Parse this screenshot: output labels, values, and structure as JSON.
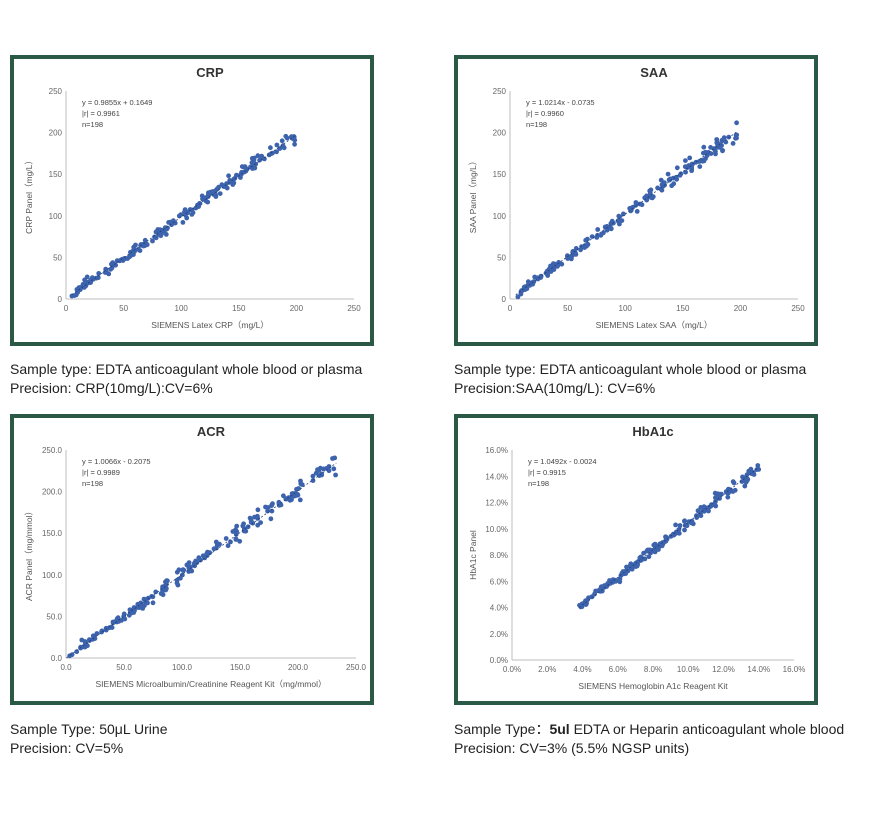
{
  "chart_data": [
    {
      "type": "scatter",
      "title": "CRP",
      "xlabel": "SIEMENS Latex CRP（mg/L）",
      "ylabel": "CRP Panel（mg/L）",
      "xlim": [
        0,
        250
      ],
      "ylim": [
        0,
        250
      ],
      "xticks": [
        "0",
        "50",
        "100",
        "150",
        "200",
        "250"
      ],
      "yticks": [
        "0",
        "50",
        "100",
        "150",
        "200",
        "250"
      ],
      "annotation": [
        "y = 0.9855x + 0.1649",
        "|r| = 0.9961",
        "n=198"
      ],
      "regression": {
        "slope": 0.9855,
        "intercept": 0.1649
      },
      "data_range": [
        5,
        200
      ],
      "n": 198,
      "point_color": "#3d63ad",
      "grid": false
    },
    {
      "type": "scatter",
      "title": "SAA",
      "xlabel": "SIEMENS Latex SAA（mg/L）",
      "ylabel": "SAA Panel（mg/L）",
      "xlim": [
        0,
        250
      ],
      "ylim": [
        0,
        250
      ],
      "xticks": [
        "0",
        "50",
        "100",
        "150",
        "200",
        "250"
      ],
      "yticks": [
        "0",
        "50",
        "100",
        "150",
        "200",
        "250"
      ],
      "annotation": [
        "y = 1.0214x - 0.0735",
        "|r| = 0.9960",
        "n=198"
      ],
      "regression": {
        "slope": 1.0214,
        "intercept": -0.0735
      },
      "data_range": [
        5,
        197
      ],
      "n": 198,
      "point_color": "#3d63ad",
      "grid": false
    },
    {
      "type": "scatter",
      "title": "ACR",
      "xlabel": "SIEMENS Microalbumin/Creatinine Reagent Kit（mg/mmol）",
      "ylabel": "ACR Panel（mg/mmol）",
      "xlim": [
        0,
        250
      ],
      "ylim": [
        0,
        250
      ],
      "xticks": [
        "0.0",
        "50.0",
        "100.0",
        "150.0",
        "200.0",
        "250.0"
      ],
      "yticks": [
        "0.0",
        "50.0",
        "100.0",
        "150.0",
        "200.0",
        "250.0"
      ],
      "annotation": [
        "y = 1.0066x - 0.2075",
        "|r| = 0.9989",
        "n=198"
      ],
      "regression": {
        "slope": 1.0066,
        "intercept": -0.2075
      },
      "data_range": [
        0.5,
        233
      ],
      "n": 198,
      "point_color": "#3d63ad",
      "grid": false
    },
    {
      "type": "scatter",
      "title": "HbA1c",
      "xlabel": "SIEMENS Hemoglobin A1c Reagent Kit",
      "ylabel": "HbA1c Panel",
      "xlim": [
        0,
        16
      ],
      "ylim": [
        0,
        16
      ],
      "xticks": [
        "0.0%",
        "2.0%",
        "4.0%",
        "6.0%",
        "8.0%",
        "10.0%",
        "12.0%",
        "14.0%",
        "16.0%"
      ],
      "yticks": [
        "0.0%",
        "2.0%",
        "4.0%",
        "6.0%",
        "8.0%",
        "10.0%",
        "12.0%",
        "14.0%",
        "16.0%"
      ],
      "annotation": [
        "y = 1.0492x - 0.0024",
        "|r| = 0.9915",
        "n=198"
      ],
      "regression": {
        "slope": 1.0492,
        "intercept": -0.0024
      },
      "data_range": [
        3.8,
        14.0
      ],
      "n": 198,
      "point_color": "#3d63ad",
      "grid": false
    }
  ],
  "captions": [
    {
      "line1": "Sample type: EDTA anticoagulant whole blood or plasma",
      "line2": "Precision: CRP(10mg/L):CV=6%"
    },
    {
      "line1": "Sample type: EDTA anticoagulant whole blood or plasma",
      "line2": "Precision:SAA(10mg/L): CV=6%"
    },
    {
      "line1": "Sample Type: 50μL Urine",
      "line2": "Precision: CV=5%"
    },
    {
      "line1_prefix": "Sample Type：",
      "line1_bold": "5ul",
      "line1_rest": " EDTA or Heparin anticoagulant whole blood",
      "line2": "Precision: CV=3% (5.5% NGSP units)"
    }
  ]
}
